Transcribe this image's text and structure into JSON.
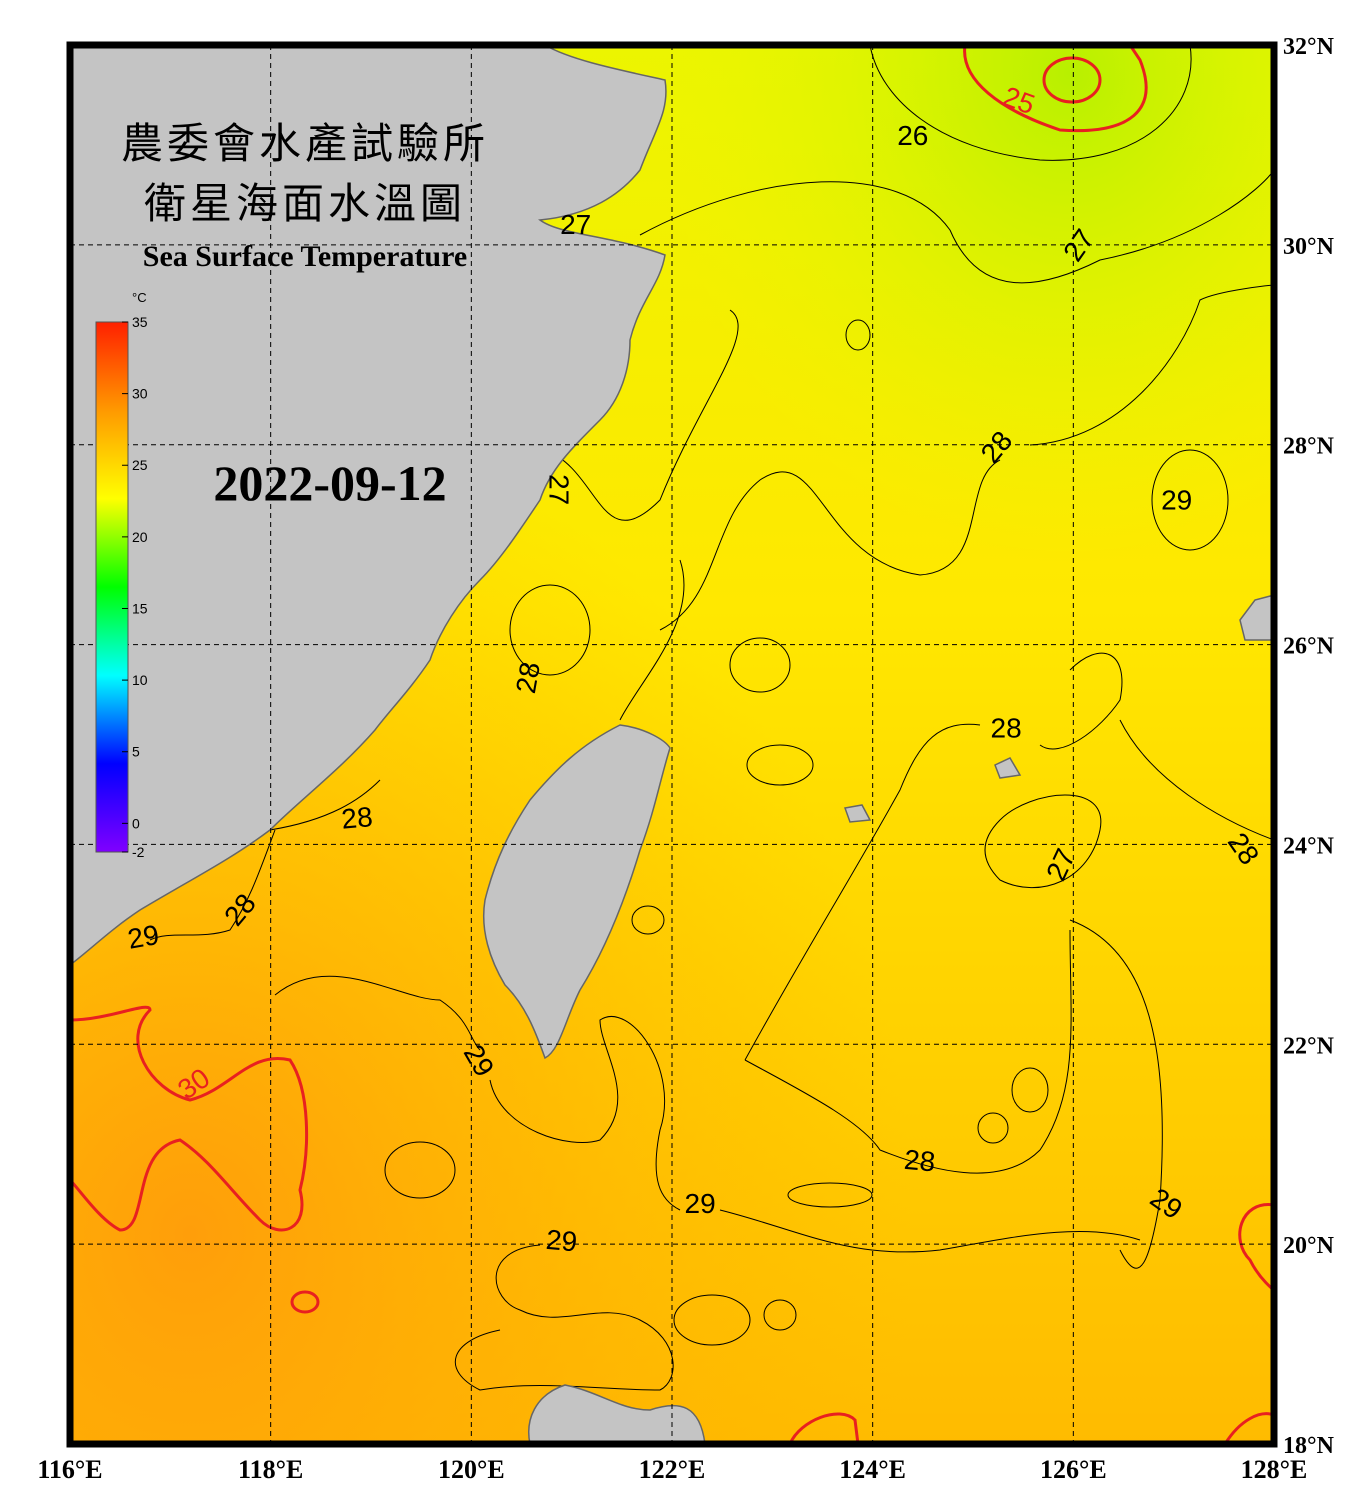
{
  "title_lines": [
    "農委會水產試驗所",
    "衛星海面水溫圖"
  ],
  "subtitle": "Sea Surface Temperature",
  "date": "2022-09-12",
  "map": {
    "lon_range": [
      116,
      128
    ],
    "lat_range": [
      18,
      32
    ],
    "lon_ticks": [
      {
        "value": 116,
        "label": "116°E"
      },
      {
        "value": 118,
        "label": "118°E"
      },
      {
        "value": 120,
        "label": "120°E"
      },
      {
        "value": 122,
        "label": "122°E"
      },
      {
        "value": 124,
        "label": "124°E"
      },
      {
        "value": 126,
        "label": "126°E"
      },
      {
        "value": 128,
        "label": "128°E"
      }
    ],
    "lat_ticks": [
      {
        "value": 18,
        "label": "18°N"
      },
      {
        "value": 20,
        "label": "20°N"
      },
      {
        "value": 22,
        "label": "22°N"
      },
      {
        "value": 24,
        "label": "24°N"
      },
      {
        "value": 26,
        "label": "26°N"
      },
      {
        "value": 28,
        "label": "28°N"
      },
      {
        "value": 30,
        "label": "30°N"
      },
      {
        "value": 32,
        "label": "32°N"
      }
    ],
    "grid": true,
    "contour_labels": [
      {
        "value": 25,
        "lon": 125.46,
        "lat": 31.45,
        "rotate": 20,
        "color": "#e82020"
      },
      {
        "value": 26,
        "lon": 124.4,
        "lat": 31.1,
        "rotate": 0,
        "color": "#000000"
      },
      {
        "value": 27,
        "lon": 126.05,
        "lat": 30.0,
        "rotate": -55,
        "color": "#000000"
      },
      {
        "value": 27,
        "lon": 121.04,
        "lat": 30.21,
        "rotate": 0,
        "color": "#000000"
      },
      {
        "value": 28,
        "lon": 125.23,
        "lat": 27.98,
        "rotate": -50,
        "color": "#000000"
      },
      {
        "value": 29,
        "lon": 127.03,
        "lat": 27.45,
        "rotate": 0,
        "color": "#000000"
      },
      {
        "value": 27,
        "lon": 120.88,
        "lat": 27.55,
        "rotate": 90,
        "color": "#000000"
      },
      {
        "value": 28,
        "lon": 120.56,
        "lat": 25.67,
        "rotate": -80,
        "color": "#000000"
      },
      {
        "value": 28,
        "lon": 125.33,
        "lat": 25.17,
        "rotate": 0,
        "color": "#000000"
      },
      {
        "value": 28,
        "lon": 118.86,
        "lat": 24.27,
        "rotate": -5,
        "color": "#000000"
      },
      {
        "value": 27,
        "lon": 125.87,
        "lat": 23.8,
        "rotate": -65,
        "color": "#000000"
      },
      {
        "value": 28,
        "lon": 127.7,
        "lat": 23.96,
        "rotate": 55,
        "color": "#000000"
      },
      {
        "value": 28,
        "lon": 117.69,
        "lat": 23.35,
        "rotate": -50,
        "color": "#000000"
      },
      {
        "value": 29,
        "lon": 116.73,
        "lat": 23.08,
        "rotate": -10,
        "color": "#000000"
      },
      {
        "value": 29,
        "lon": 120.08,
        "lat": 21.84,
        "rotate": 60,
        "color": "#000000"
      },
      {
        "value": 30,
        "lon": 117.23,
        "lat": 21.61,
        "rotate": -35,
        "color": "#e82020"
      },
      {
        "value": 28,
        "lon": 124.47,
        "lat": 20.84,
        "rotate": 5,
        "color": "#000000"
      },
      {
        "value": 29,
        "lon": 122.28,
        "lat": 20.41,
        "rotate": 0,
        "color": "#000000"
      },
      {
        "value": 29,
        "lon": 126.93,
        "lat": 20.41,
        "rotate": 35,
        "color": "#000000"
      },
      {
        "value": 29,
        "lon": 120.9,
        "lat": 20.04,
        "rotate": 5,
        "color": "#000000"
      }
    ]
  },
  "colorbar": {
    "unit": "°C",
    "range": [
      -2,
      35
    ],
    "ticks": [
      35,
      30,
      25,
      20,
      15,
      10,
      5,
      0,
      -2
    ],
    "colors": [
      "#8000ff",
      "#0000ff",
      "#00ffff",
      "#00ff00",
      "#ffff00",
      "#ff9900",
      "#ff2000"
    ]
  }
}
